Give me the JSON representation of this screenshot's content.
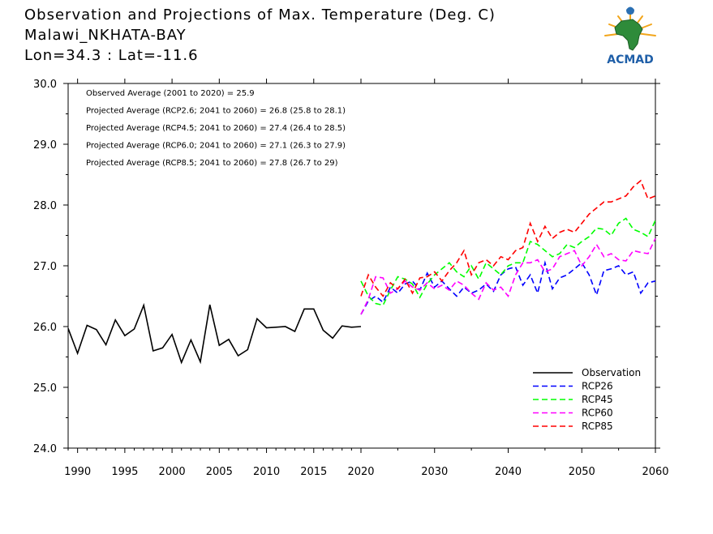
{
  "header": {
    "title": "Observation and Projections of Max. Temperature (Deg. C)",
    "location": "Malawi_NKHATA-BAY",
    "coords": "Lon=34.3 : Lat=-11.6"
  },
  "logo": {
    "text": "ACMAD",
    "icon": "acmad-africa-logo-icon"
  },
  "annotations": [
    "Observed Average (2001 to 2020) = 25.9",
    "Projected Average (RCP2.6; 2041 to 2060) = 26.8 (25.8 to 28.1)",
    "Projected Average (RCP4.5; 2041 to 2060) = 27.4 (26.4 to 28.5)",
    "Projected Average (RCP6.0; 2041 to 2060) = 27.1 (26.3 to 27.9)",
    "Projected Average (RCP8.5; 2041 to 2060) = 27.8 (26.7 to 29)"
  ],
  "chart_data": {
    "type": "line",
    "title": "Observation and Projections of Max. Temperature (Deg. C)",
    "xlim": [
      1989,
      2060
    ],
    "ylim": [
      24.0,
      30.0
    ],
    "x_ticks": [
      1990,
      1995,
      2000,
      2005,
      2010,
      2015,
      2020,
      2030,
      2040,
      2050,
      2060
    ],
    "x_scale": "piecewise linear (1989-2020 compressed, 2020-2060 expanded)",
    "y_ticks": [
      24.0,
      25.0,
      26.0,
      27.0,
      28.0,
      29.0,
      30.0
    ],
    "legend_position": "bottom-right",
    "series": [
      {
        "name": "Observation",
        "color": "#000000",
        "dashed": false,
        "x": [
          1989,
          1990,
          1991,
          1992,
          1993,
          1994,
          1995,
          1996,
          1997,
          1998,
          1999,
          2000,
          2001,
          2002,
          2003,
          2004,
          2005,
          2006,
          2007,
          2008,
          2009,
          2010,
          2011,
          2012,
          2013,
          2014,
          2015,
          2016,
          2017,
          2018,
          2019,
          2020
        ],
        "y": [
          25.97,
          25.56,
          26.02,
          25.95,
          25.7,
          26.11,
          25.85,
          25.96,
          26.35,
          25.6,
          25.65,
          25.87,
          25.41,
          25.78,
          25.42,
          26.36,
          25.69,
          25.79,
          25.52,
          25.62,
          26.13,
          25.98,
          25.99,
          26.0,
          25.92,
          26.29,
          26.29,
          25.94,
          25.81,
          26.01,
          25.99,
          26.0
        ]
      },
      {
        "name": "RCP26",
        "color": "#0000ff",
        "dashed": true,
        "x": [
          2020,
          2021,
          2022,
          2023,
          2024,
          2025,
          2026,
          2027,
          2028,
          2029,
          2030,
          2031,
          2032,
          2033,
          2034,
          2035,
          2036,
          2037,
          2038,
          2039,
          2040,
          2041,
          2042,
          2043,
          2044,
          2045,
          2046,
          2047,
          2048,
          2049,
          2050,
          2051,
          2052,
          2053,
          2054,
          2055,
          2056,
          2057,
          2058,
          2059,
          2060
        ],
        "y": [
          26.2,
          26.42,
          26.5,
          26.4,
          26.65,
          26.55,
          26.7,
          26.75,
          26.6,
          26.88,
          26.65,
          26.75,
          26.62,
          26.5,
          26.65,
          26.55,
          26.6,
          26.7,
          26.58,
          26.85,
          26.95,
          26.98,
          26.68,
          26.85,
          26.55,
          27.05,
          26.62,
          26.8,
          26.85,
          26.95,
          27.05,
          26.85,
          26.52,
          26.92,
          26.95,
          27.0,
          26.85,
          26.9,
          26.55,
          26.72,
          26.75
        ]
      },
      {
        "name": "RCP45",
        "color": "#00ff00",
        "dashed": true,
        "x": [
          2020,
          2021,
          2022,
          2023,
          2024,
          2025,
          2026,
          2027,
          2028,
          2029,
          2030,
          2031,
          2032,
          2033,
          2034,
          2035,
          2036,
          2037,
          2038,
          2039,
          2040,
          2041,
          2042,
          2043,
          2044,
          2045,
          2046,
          2047,
          2048,
          2049,
          2050,
          2051,
          2052,
          2053,
          2054,
          2055,
          2056,
          2057,
          2058,
          2059,
          2060
        ],
        "y": [
          26.75,
          26.5,
          26.38,
          26.35,
          26.6,
          26.82,
          26.78,
          26.7,
          26.48,
          26.7,
          26.85,
          26.95,
          27.05,
          26.9,
          26.82,
          27.0,
          26.78,
          27.05,
          26.95,
          26.85,
          27.0,
          27.05,
          27.05,
          27.4,
          27.35,
          27.25,
          27.15,
          27.2,
          27.35,
          27.3,
          27.4,
          27.48,
          27.62,
          27.6,
          27.5,
          27.7,
          27.78,
          27.6,
          27.55,
          27.48,
          27.75
        ]
      },
      {
        "name": "RCP60",
        "color": "#ff00ff",
        "dashed": true,
        "x": [
          2020,
          2021,
          2022,
          2023,
          2024,
          2025,
          2026,
          2027,
          2028,
          2029,
          2030,
          2031,
          2032,
          2033,
          2034,
          2035,
          2036,
          2037,
          2038,
          2039,
          2040,
          2041,
          2042,
          2043,
          2044,
          2045,
          2046,
          2047,
          2048,
          2049,
          2050,
          2051,
          2052,
          2053,
          2054,
          2055,
          2056,
          2057,
          2058,
          2059,
          2060
        ],
        "y": [
          26.2,
          26.45,
          26.82,
          26.8,
          26.55,
          26.62,
          26.75,
          26.65,
          26.6,
          26.72,
          26.62,
          26.68,
          26.6,
          26.75,
          26.68,
          26.55,
          26.45,
          26.72,
          26.6,
          26.65,
          26.5,
          26.85,
          27.05,
          27.05,
          27.1,
          26.9,
          26.95,
          27.15,
          27.2,
          27.25,
          27.0,
          27.15,
          27.35,
          27.15,
          27.2,
          27.1,
          27.08,
          27.25,
          27.22,
          27.2,
          27.45
        ]
      },
      {
        "name": "RCP85",
        "color": "#ff0000",
        "dashed": true,
        "x": [
          2020,
          2021,
          2022,
          2023,
          2024,
          2025,
          2026,
          2027,
          2028,
          2029,
          2030,
          2031,
          2032,
          2033,
          2034,
          2035,
          2036,
          2037,
          2038,
          2039,
          2040,
          2041,
          2042,
          2043,
          2044,
          2045,
          2046,
          2047,
          2048,
          2049,
          2050,
          2051,
          2052,
          2053,
          2054,
          2055,
          2056,
          2057,
          2058,
          2059,
          2060
        ],
        "y": [
          26.5,
          26.85,
          26.65,
          26.5,
          26.72,
          26.62,
          26.78,
          26.55,
          26.8,
          26.82,
          26.9,
          26.75,
          26.92,
          27.05,
          27.25,
          26.85,
          27.05,
          27.1,
          27.0,
          27.15,
          27.1,
          27.25,
          27.3,
          27.7,
          27.4,
          27.65,
          27.45,
          27.55,
          27.6,
          27.55,
          27.7,
          27.85,
          27.95,
          28.05,
          28.05,
          28.1,
          28.15,
          28.3,
          28.4,
          28.1,
          28.15
        ]
      }
    ]
  }
}
